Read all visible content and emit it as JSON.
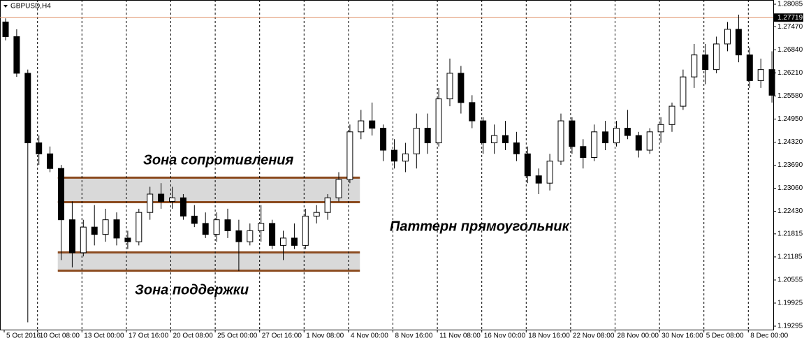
{
  "chart_data": {
    "type": "candlestick",
    "title": "GBPUSD,H4",
    "categories": [
      "5 Oct 2016",
      null,
      null,
      "10 Oct 08:00",
      null,
      null,
      null,
      "13 Oct 00:00",
      null,
      null,
      null,
      "17 Oct 16:00",
      null,
      null,
      null,
      "20 Oct 08:00",
      null,
      null,
      null,
      "25 Oct 00:00",
      null,
      null,
      null,
      "27 Oct 16:00",
      null,
      null,
      null,
      "1 Nov 08:00",
      null,
      null,
      null,
      "4 Nov 00:00",
      null,
      null,
      null,
      "8 Nov 16:00",
      null,
      null,
      null,
      "11 Nov 08:00",
      null,
      null,
      null,
      "16 Nov 00:00",
      null,
      null,
      null,
      "18 Nov 16:00",
      null,
      null,
      null,
      "22 Nov 08:00",
      null,
      null,
      null,
      "28 Nov 00:00",
      null,
      null,
      null,
      "30 Nov 16:00",
      null,
      null,
      null,
      "5 Dec 08:00",
      null,
      null,
      null,
      "8 Dec 00:00",
      null,
      null
    ],
    "open": [
      1.276,
      1.272,
      1.262,
      1.243,
      1.24,
      1.236,
      1.222,
      1.213,
      1.22,
      1.218,
      1.222,
      1.217,
      1.216,
      1.224,
      1.229,
      1.227,
      1.228,
      1.223,
      1.221,
      1.218,
      1.222,
      1.219,
      1.216,
      1.219,
      1.221,
      1.215,
      1.217,
      1.215,
      1.223,
      1.224,
      1.228,
      1.233,
      1.246,
      1.249,
      1.247,
      1.241,
      1.238,
      1.24,
      1.247,
      1.243,
      1.255,
      1.262,
      1.254,
      1.249,
      1.243,
      1.245,
      1.243,
      1.24,
      1.234,
      1.232,
      1.238,
      1.249,
      1.242,
      1.239,
      1.246,
      1.243,
      1.247,
      1.245,
      1.241,
      1.246,
      1.248,
      1.253,
      1.261,
      1.267,
      1.263,
      1.27,
      1.274,
      1.267,
      1.26,
      1.263
    ],
    "high": [
      1.277,
      1.274,
      1.263,
      1.245,
      1.242,
      1.237,
      1.227,
      1.222,
      1.226,
      1.225,
      1.224,
      1.219,
      1.225,
      1.231,
      1.232,
      1.231,
      1.229,
      1.226,
      1.224,
      1.224,
      1.225,
      1.222,
      1.221,
      1.226,
      1.222,
      1.219,
      1.221,
      1.225,
      1.226,
      1.229,
      1.235,
      1.248,
      1.252,
      1.254,
      1.248,
      1.244,
      1.243,
      1.251,
      1.251,
      1.258,
      1.266,
      1.264,
      1.256,
      1.25,
      1.248,
      1.249,
      1.246,
      1.242,
      1.236,
      1.24,
      1.251,
      1.25,
      1.244,
      1.248,
      1.249,
      1.249,
      1.252,
      1.246,
      1.247,
      1.25,
      1.254,
      1.263,
      1.27,
      1.27,
      1.272,
      1.276,
      1.278,
      1.269,
      1.266,
      1.268
    ],
    "low": [
      1.271,
      1.261,
      1.194,
      1.237,
      1.235,
      1.211,
      1.209,
      1.212,
      1.215,
      1.216,
      1.215,
      1.214,
      1.215,
      1.222,
      1.225,
      1.225,
      1.222,
      1.22,
      1.217,
      1.216,
      1.217,
      1.208,
      1.215,
      1.216,
      1.214,
      1.211,
      1.214,
      1.214,
      1.221,
      1.222,
      1.227,
      1.232,
      1.244,
      1.245,
      1.238,
      1.236,
      1.235,
      1.236,
      1.24,
      1.242,
      1.253,
      1.251,
      1.247,
      1.24,
      1.24,
      1.241,
      1.238,
      1.232,
      1.229,
      1.23,
      1.237,
      1.24,
      1.236,
      1.238,
      1.241,
      1.242,
      1.244,
      1.239,
      1.24,
      1.243,
      1.246,
      1.252,
      1.258,
      1.259,
      1.262,
      1.268,
      1.265,
      1.258,
      1.258,
      1.254
    ],
    "close": [
      1.272,
      1.262,
      1.243,
      1.24,
      1.236,
      1.222,
      1.213,
      1.22,
      1.218,
      1.222,
      1.217,
      1.216,
      1.224,
      1.229,
      1.227,
      1.228,
      1.223,
      1.221,
      1.218,
      1.222,
      1.219,
      1.216,
      1.219,
      1.221,
      1.215,
      1.217,
      1.215,
      1.223,
      1.224,
      1.228,
      1.233,
      1.246,
      1.249,
      1.247,
      1.241,
      1.238,
      1.24,
      1.247,
      1.243,
      1.255,
      1.262,
      1.254,
      1.249,
      1.243,
      1.245,
      1.243,
      1.24,
      1.234,
      1.232,
      1.238,
      1.249,
      1.242,
      1.239,
      1.246,
      1.243,
      1.247,
      1.245,
      1.241,
      1.246,
      1.248,
      1.253,
      1.261,
      1.267,
      1.263,
      1.27,
      1.274,
      1.267,
      1.26,
      1.263,
      1.256
    ],
    "up_color": "#ffffff",
    "down_color": "#000000",
    "ylim": [
      1.192,
      1.282
    ],
    "yticks": [
      1.28085,
      {
        "value": 1.2747,
        "label": "1.27470"
      },
      {
        "value": 1.2684,
        "label": "1.26840"
      },
      {
        "value": 1.2621,
        "label": "1.26210"
      },
      {
        "value": 1.2558,
        "label": "1.25580"
      },
      {
        "value": 1.2495,
        "label": "1.24950"
      },
      {
        "value": 1.2432,
        "label": "1.24320"
      },
      {
        "value": 1.2369,
        "label": "1.23690"
      },
      {
        "value": 1.2306,
        "label": "1.23060"
      },
      {
        "value": 1.2243,
        "label": "1.22430"
      },
      1.21815,
      1.21185,
      1.20555,
      1.19925,
      1.19295
    ],
    "grid": "vertical",
    "last_price": 1.27719,
    "last_price_color": "#e0926a",
    "zones": [
      {
        "label": "Зона сопротивления",
        "low": 1.2268,
        "high": 1.2335,
        "color": "#8b4a1e"
      },
      {
        "label": "Зона поддержки",
        "low": 1.2081,
        "high": 1.2131,
        "color": "#8b4a1e"
      }
    ],
    "pattern_label": "Паттерн прямоугольник"
  }
}
